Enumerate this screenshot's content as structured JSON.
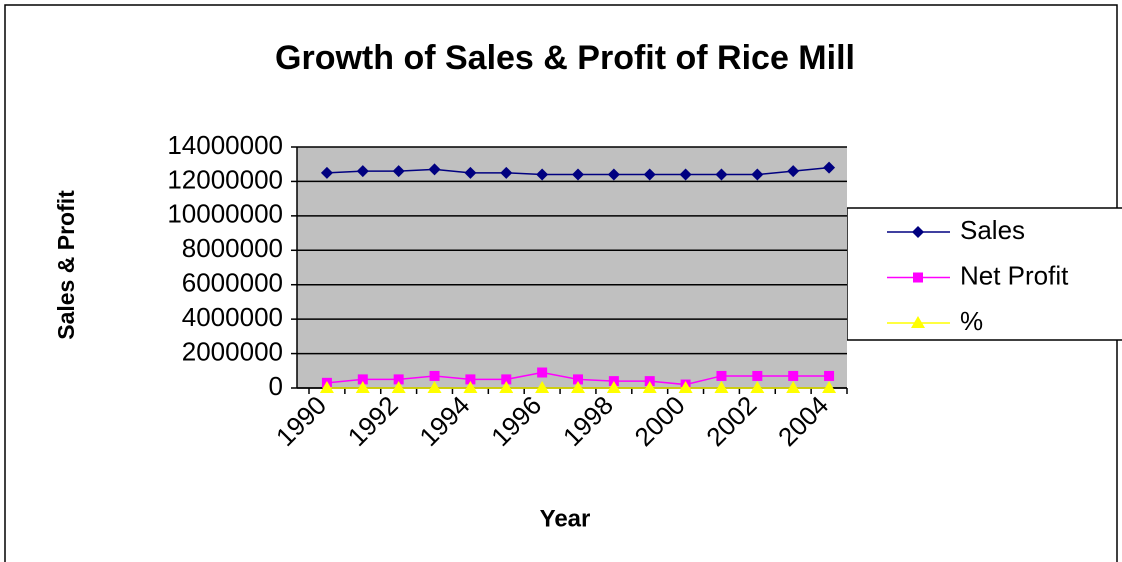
{
  "chart_data": {
    "type": "line",
    "title": "Growth of Sales & Profit of Rice Mill",
    "x_label": "Year",
    "y_label": "Sales & Profit",
    "categories": [
      "1990",
      null,
      "1992",
      null,
      "1994",
      null,
      "1996",
      null,
      "1998",
      null,
      "2000",
      null,
      "2002",
      null,
      "2004"
    ],
    "series": [
      {
        "name": "Sales",
        "color": "#000080",
        "marker": "diamond",
        "values": [
          12500000,
          12600000,
          12600000,
          12700000,
          12500000,
          12500000,
          12400000,
          12400000,
          12400000,
          12400000,
          12400000,
          12400000,
          12400000,
          12600000,
          12800000
        ]
      },
      {
        "name": "Net Profit",
        "color": "#ff00ff",
        "marker": "square",
        "values": [
          300000,
          500000,
          500000,
          700000,
          500000,
          500000,
          900000,
          500000,
          400000,
          400000,
          200000,
          700000,
          700000,
          700000,
          700000
        ]
      },
      {
        "name": "%",
        "color": "#ffff00",
        "marker": "triangle",
        "values": [
          0,
          0,
          0,
          0,
          0,
          0,
          0,
          0,
          0,
          0,
          0,
          0,
          0,
          0,
          0
        ]
      }
    ],
    "ylim": [
      0,
      14000000
    ],
    "yticks": [
      0,
      2000000,
      4000000,
      6000000,
      8000000,
      10000000,
      12000000,
      14000000
    ],
    "grid": true,
    "legend": "right"
  }
}
